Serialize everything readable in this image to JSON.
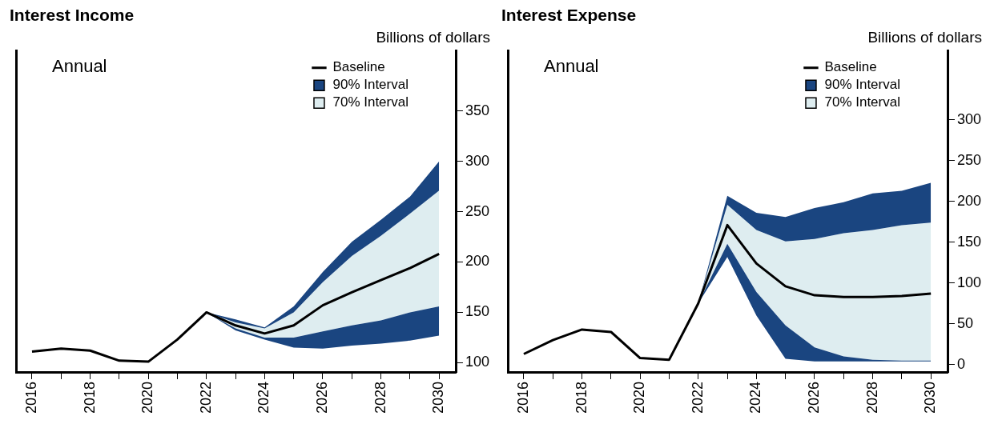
{
  "chart_data": [
    {
      "type": "line",
      "title": "Interest Income",
      "ylabel": "Billions of dollars",
      "annotations": [
        "Annual"
      ],
      "legend": "top right",
      "grid": false,
      "xlim": [
        2015.45,
        2030.6
      ],
      "ylim": [
        90,
        410
      ],
      "yticks": [
        100,
        150,
        200,
        250,
        300,
        350
      ],
      "xticks": [
        2016,
        {
          "value": 2017,
          "label": null
        },
        2018,
        {
          "value": 2019,
          "label": null
        },
        2020,
        {
          "value": 2021,
          "label": null
        },
        2022,
        {
          "value": 2023,
          "label": null
        },
        2024,
        {
          "value": 2025,
          "label": null
        },
        2026,
        {
          "value": 2027,
          "label": null
        },
        2028,
        {
          "value": 2029,
          "label": null
        },
        2030
      ],
      "series": [
        {
          "name": "Baseline",
          "type": "line",
          "color": "#000000",
          "x": [
            2016,
            2017,
            2018,
            2019,
            2020,
            2021,
            2022,
            2023,
            2024,
            2025,
            2026,
            2027,
            2028,
            2029,
            2030
          ],
          "values": [
            111,
            114,
            112,
            102,
            101,
            123,
            150,
            137,
            129,
            137,
            157,
            170,
            182,
            194,
            208
          ]
        },
        {
          "name": "90% Interval",
          "type": "area",
          "color": "#1a4580",
          "x": [
            2022,
            2023,
            2024,
            2025,
            2026,
            2027,
            2028,
            2029,
            2030
          ],
          "values": [
            null,
            null,
            null,
            null,
            null,
            null,
            null,
            null,
            null
          ],
          "lower": [
            150,
            132,
            123,
            115,
            114,
            117,
            119,
            122,
            127
          ],
          "upper": [
            150,
            143,
            135,
            156,
            190,
            220,
            242,
            265,
            300
          ]
        },
        {
          "name": "70% Interval",
          "type": "area",
          "color": "#deedf0",
          "x": [
            2022,
            2023,
            2024,
            2025,
            2026,
            2027,
            2028,
            2029,
            2030
          ],
          "values": [
            null,
            null,
            null,
            null,
            null,
            null,
            null,
            null,
            null
          ],
          "lower": [
            150,
            134,
            125,
            125,
            131,
            137,
            142,
            150,
            156
          ],
          "upper": [
            150,
            140,
            134,
            150,
            180,
            206,
            226,
            248,
            271
          ]
        }
      ]
    },
    {
      "type": "line",
      "title": "Interest Expense",
      "ylabel": "Billions of dollars",
      "annotations": [
        "Annual"
      ],
      "legend": "top right",
      "grid": false,
      "xlim": [
        2015.45,
        2030.6
      ],
      "ylim": [
        -10,
        385
      ],
      "yticks": [
        0,
        50,
        100,
        150,
        200,
        250,
        300
      ],
      "xticks": [
        2016,
        {
          "value": 2017,
          "label": null
        },
        2018,
        {
          "value": 2019,
          "label": null
        },
        2020,
        {
          "value": 2021,
          "label": null
        },
        2022,
        {
          "value": 2023,
          "label": null
        },
        2024,
        {
          "value": 2025,
          "label": null
        },
        2026,
        {
          "value": 2027,
          "label": null
        },
        2028,
        {
          "value": 2029,
          "label": null
        },
        2030
      ],
      "series": [
        {
          "name": "Baseline",
          "type": "line",
          "color": "#000000",
          "x": [
            2016,
            2017,
            2018,
            2019,
            2020,
            2021,
            2022,
            2023,
            2024,
            2025,
            2026,
            2027,
            2028,
            2029,
            2030
          ],
          "values": [
            13,
            30,
            43,
            40,
            8,
            6,
            75,
            171,
            124,
            96,
            85,
            83,
            83,
            84,
            87
          ]
        },
        {
          "name": "90% Interval",
          "type": "area",
          "color": "#1a4580",
          "x": [
            2022,
            2023,
            2024,
            2025,
            2026,
            2027,
            2028,
            2029,
            2030
          ],
          "values": [
            null,
            null,
            null,
            null,
            null,
            null,
            null,
            null,
            null
          ],
          "lower": [
            75,
            132,
            60,
            7,
            4,
            4,
            4,
            4,
            4
          ],
          "upper": [
            75,
            207,
            186,
            181,
            192,
            199,
            210,
            213,
            223
          ]
        },
        {
          "name": "70% Interval",
          "type": "area",
          "color": "#deedf0",
          "x": [
            2022,
            2023,
            2024,
            2025,
            2026,
            2027,
            2028,
            2029,
            2030
          ],
          "values": [
            null,
            null,
            null,
            null,
            null,
            null,
            null,
            null,
            null
          ],
          "lower": [
            75,
            148,
            89,
            48,
            21,
            10,
            6,
            5,
            5
          ],
          "upper": [
            75,
            196,
            165,
            151,
            154,
            161,
            165,
            171,
            174
          ]
        }
      ]
    }
  ]
}
